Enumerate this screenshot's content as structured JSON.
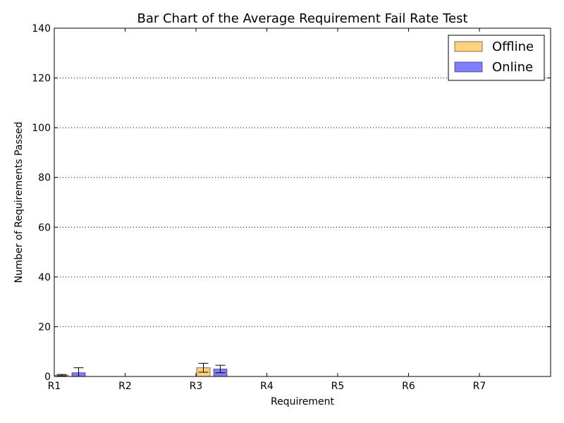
{
  "chart_data": {
    "type": "bar",
    "title": "Bar Chart of the Average Requirement Fail Rate Test",
    "xlabel": "Requirement",
    "ylabel": "Number of Requirements Passed",
    "categories": [
      "R1",
      "R2",
      "R3",
      "R4",
      "R5",
      "R6",
      "R7"
    ],
    "ylim": [
      0,
      140
    ],
    "yticks": [
      0,
      20,
      40,
      60,
      80,
      100,
      120,
      140
    ],
    "grid": "y-dotted",
    "legend_position": "top-right",
    "series": [
      {
        "name": "Offline",
        "color": "#ffa500",
        "values": [
          0.5,
          0,
          3.5,
          0,
          0,
          0,
          0
        ],
        "errors": [
          0.3,
          0,
          1.8,
          0,
          0,
          0,
          0
        ]
      },
      {
        "name": "Online",
        "color": "#0000ff",
        "values": [
          1.5,
          0,
          3,
          0,
          0,
          0,
          0
        ],
        "errors": [
          2.0,
          0,
          1.5,
          0,
          0,
          0,
          0
        ]
      }
    ]
  }
}
